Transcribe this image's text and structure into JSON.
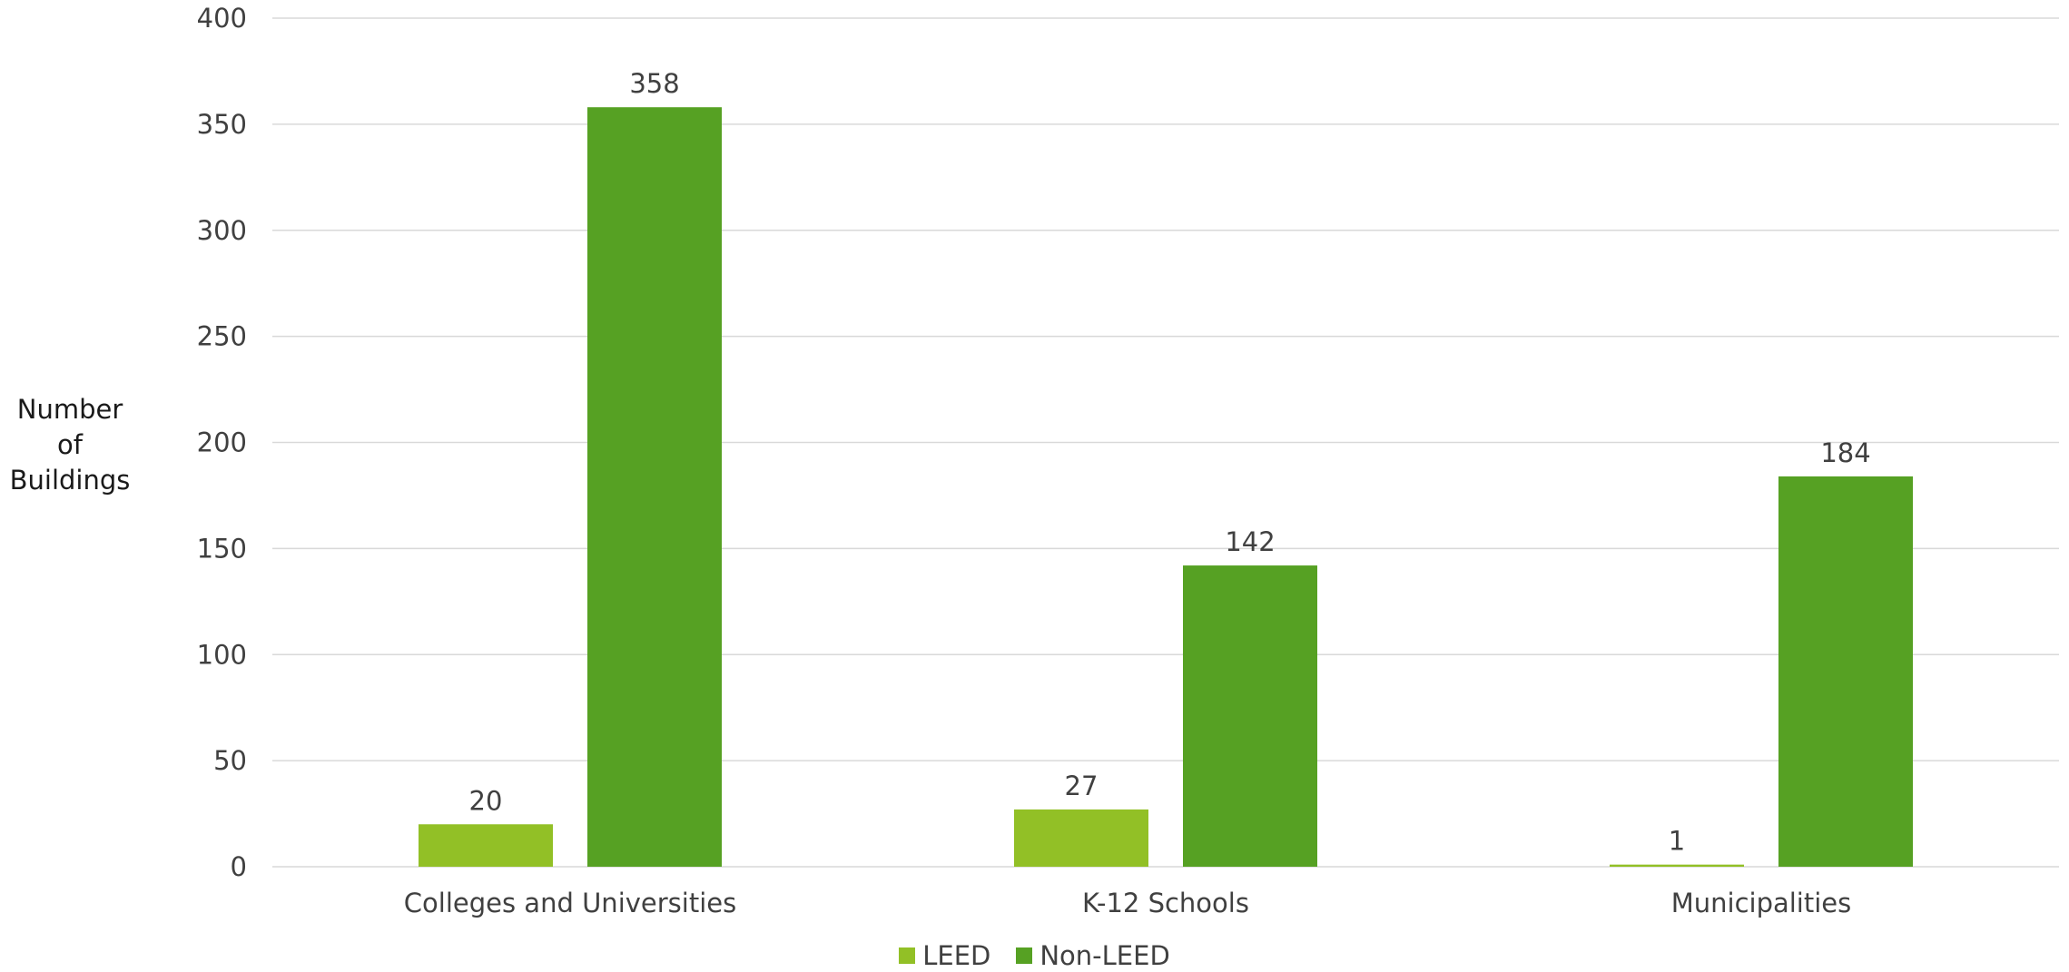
{
  "chart_data": {
    "type": "bar",
    "title": "",
    "xlabel": "",
    "ylabel_lines": [
      "Number",
      "of",
      "Buildings"
    ],
    "categories": [
      "Colleges and Universities",
      "K-12 Schools",
      "Municipalities"
    ],
    "series": [
      {
        "name": "LEED",
        "values": [
          20,
          27,
          1
        ],
        "color": "#92c026"
      },
      {
        "name": "Non-LEED",
        "values": [
          358,
          142,
          184
        ],
        "color": "#56a123"
      }
    ],
    "ylim": [
      0,
      400
    ],
    "yticks": [
      0,
      50,
      100,
      150,
      200,
      250,
      300,
      350,
      400
    ],
    "grid": true,
    "legend_position": "bottom",
    "data_labels": true,
    "gridline_color": "#d9d9d9"
  }
}
